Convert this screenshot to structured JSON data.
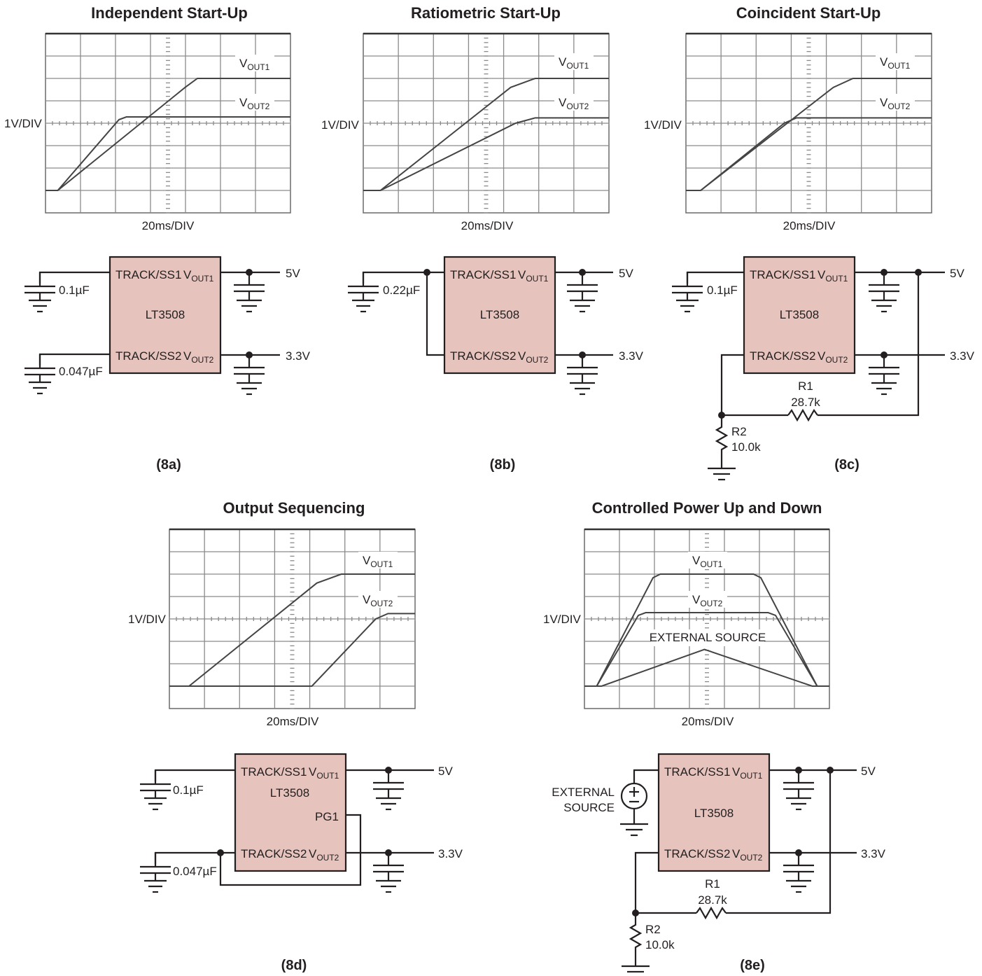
{
  "panels": [
    {
      "id": "8a",
      "title": "Independent Start-Up",
      "scope": {
        "y_scale": "1V/DIV",
        "x_scale": "20ms/DIV",
        "traces": [
          "VOUT1",
          "VOUT2"
        ]
      },
      "circuit": {
        "chip": "LT3508",
        "pins": [
          "TRACK/SS1",
          "VOUT1",
          "TRACK/SS2",
          "VOUT2"
        ],
        "caps": [
          "0.1µF",
          "0.047µF"
        ],
        "outputs": [
          "5V",
          "3.3V"
        ]
      },
      "label": "(8a)"
    },
    {
      "id": "8b",
      "title": "Ratiometric Start-Up",
      "scope": {
        "y_scale": "1V/DIV",
        "x_scale": "20ms/DIV",
        "traces": [
          "VOUT1",
          "VOUT2"
        ]
      },
      "circuit": {
        "chip": "LT3508",
        "pins": [
          "TRACK/SS1",
          "VOUT1",
          "TRACK/SS2",
          "VOUT2"
        ],
        "caps": [
          "0.22µF"
        ],
        "outputs": [
          "5V",
          "3.3V"
        ]
      },
      "label": "(8b)"
    },
    {
      "id": "8c",
      "title": "Coincident Start-Up",
      "scope": {
        "y_scale": "1V/DIV",
        "x_scale": "20ms/DIV",
        "traces": [
          "VOUT1",
          "VOUT2"
        ]
      },
      "circuit": {
        "chip": "LT3508",
        "pins": [
          "TRACK/SS1",
          "VOUT1",
          "TRACK/SS2",
          "VOUT2"
        ],
        "caps": [
          "0.1µF"
        ],
        "resistors": [
          {
            "name": "R1",
            "value": "28.7k"
          },
          {
            "name": "R2",
            "value": "10.0k"
          }
        ],
        "outputs": [
          "5V",
          "3.3V"
        ]
      },
      "label": "(8c)"
    },
    {
      "id": "8d",
      "title": "Output Sequencing",
      "scope": {
        "y_scale": "1V/DIV",
        "x_scale": "20ms/DIV",
        "traces": [
          "VOUT1",
          "VOUT2"
        ]
      },
      "circuit": {
        "chip": "LT3508",
        "pins": [
          "TRACK/SS1",
          "VOUT1",
          "PG1",
          "TRACK/SS2",
          "VOUT2"
        ],
        "caps": [
          "0.1µF",
          "0.047µF"
        ],
        "outputs": [
          "5V",
          "3.3V"
        ]
      },
      "label": "(8d)"
    },
    {
      "id": "8e",
      "title": "Controlled Power Up and Down",
      "scope": {
        "y_scale": "1V/DIV",
        "x_scale": "20ms/DIV",
        "traces": [
          "VOUT1",
          "VOUT2",
          "EXTERNAL SOURCE"
        ]
      },
      "circuit": {
        "chip": "LT3508",
        "pins": [
          "TRACK/SS1",
          "VOUT1",
          "TRACK/SS2",
          "VOUT2"
        ],
        "source": [
          "EXTERNAL",
          "SOURCE"
        ],
        "resistors": [
          {
            "name": "R1",
            "value": "28.7k"
          },
          {
            "name": "R2",
            "value": "10.0k"
          }
        ],
        "outputs": [
          "5V",
          "3.3V"
        ]
      },
      "label": "(8e)"
    }
  ]
}
